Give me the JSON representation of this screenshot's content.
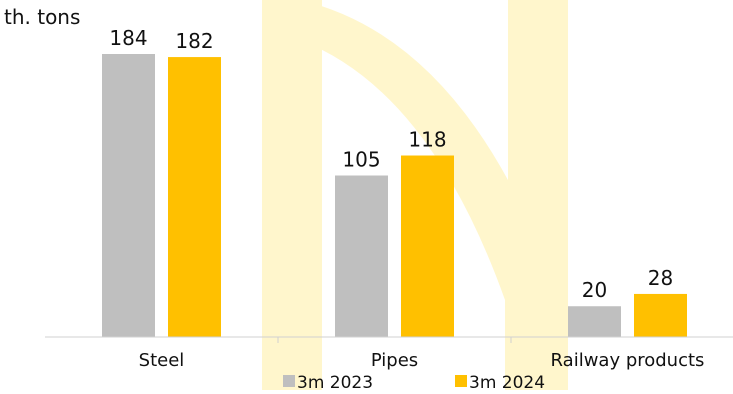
{
  "chart_data": {
    "type": "bar",
    "unit_label": "th. tons",
    "categories": [
      "Steel",
      "Pipes",
      "Railway products"
    ],
    "series": [
      {
        "name": "3m 2023",
        "values": [
          184,
          105,
          20
        ],
        "color": "#bfbfbf"
      },
      {
        "name": "3m 2024",
        "values": [
          182,
          118,
          28
        ],
        "color": "#ffc000"
      }
    ],
    "ylim": [
      0,
      184
    ],
    "grid": false,
    "legend": "bottom"
  }
}
